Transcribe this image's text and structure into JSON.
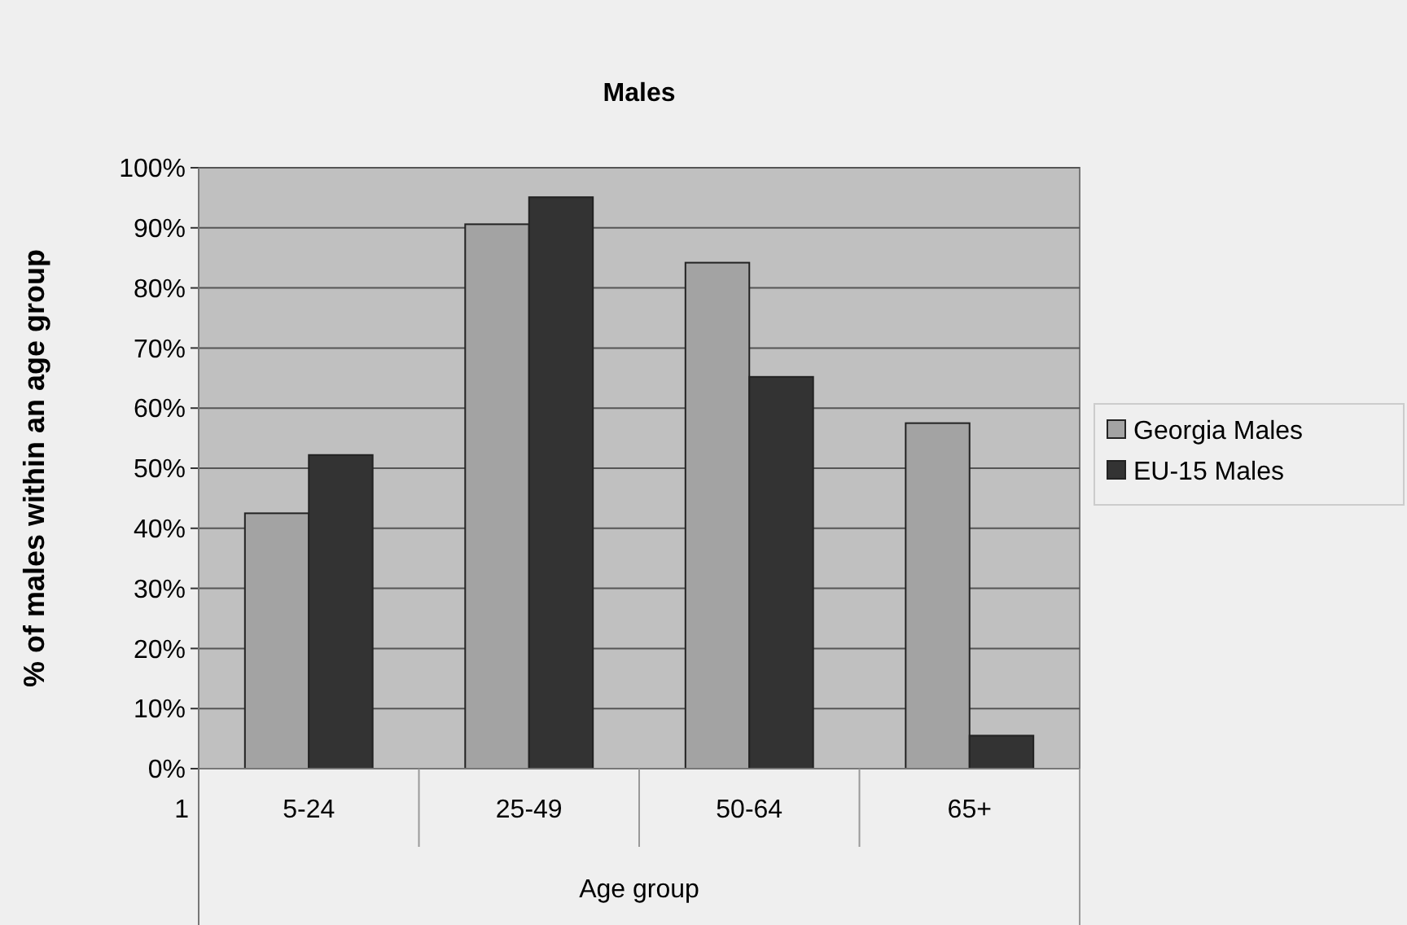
{
  "chart_data": {
    "type": "bar",
    "title": "Males",
    "xlabel": "Age group",
    "ylabel": "% of males within an age group",
    "categories": [
      "5-24",
      "25-49",
      "50-64",
      "65+"
    ],
    "series": [
      {
        "name": "Georgia Males",
        "color": "#a3a3a3",
        "values": [
          42.5,
          90.6,
          84.2,
          57.5
        ]
      },
      {
        "name": "EU-15 Males",
        "color": "#333333",
        "values": [
          52.2,
          95.1,
          65.2,
          5.5
        ]
      }
    ],
    "ylim": [
      0,
      100
    ],
    "yticks": [
      {
        "value": 0,
        "label": "0%"
      },
      {
        "value": 10,
        "label": "10%"
      },
      {
        "value": 20,
        "label": "20%"
      },
      {
        "value": 30,
        "label": "30%"
      },
      {
        "value": 40,
        "label": "40%"
      },
      {
        "value": 50,
        "label": "50%"
      },
      {
        "value": 60,
        "label": "60%"
      },
      {
        "value": 70,
        "label": "70%"
      },
      {
        "value": 80,
        "label": "80%"
      },
      {
        "value": 90,
        "label": "90%"
      },
      {
        "value": 100,
        "label": "100%"
      }
    ],
    "grid": "y",
    "legend": "right",
    "annotations": [
      "1"
    ]
  }
}
